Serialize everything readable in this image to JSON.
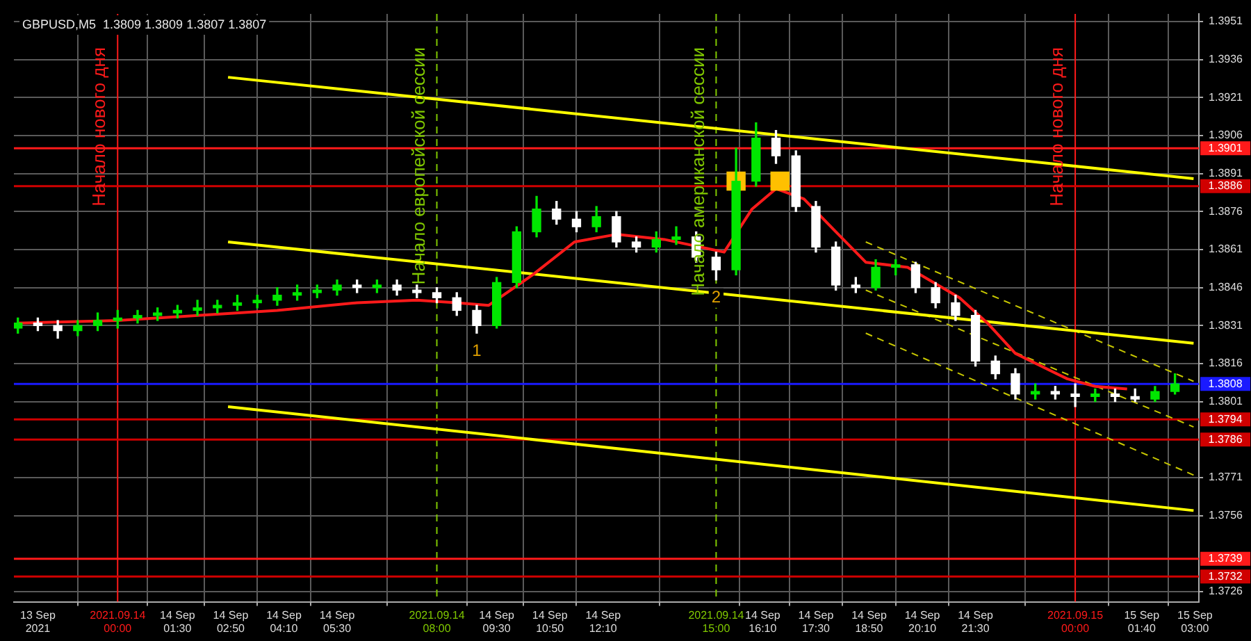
{
  "chart_data": {
    "type": "candlestick",
    "title": "GBPUSD,M5  1.3809 1.3809 1.3807 1.3807",
    "colors": [
      "#00e600",
      "#ffffff",
      "#ffffff",
      "#00e600",
      "#00e600",
      "#00e600",
      "#00e600",
      "#00e600",
      "#00e600",
      "#00e600",
      "#00e600",
      "#00e600",
      "#00e600",
      "#00e600",
      "#00e600",
      "#00e600",
      "#00e600",
      "#ffffff",
      "#00e600",
      "#ffffff",
      "#ffffff",
      "#ffffff",
      "#ffffff",
      "#ffffff",
      "#00e600",
      "#00e600",
      "#00e600",
      "#ffffff",
      "#ffffff",
      "#00e600",
      "#ffffff",
      "#ffffff",
      "#00e600",
      "#00e600",
      "#ffffff",
      "#ffffff",
      "#00e600",
      "#00e600",
      "#ffffff",
      "#ffffff",
      "#ffffff",
      "#ffffff",
      "#ffffff",
      "#00e600",
      "#00e600",
      "#ffffff",
      "#ffffff",
      "#ffffff",
      "#ffffff",
      "#ffffff",
      "#ffffff",
      "#00e600",
      "#ffffff",
      "#ffffff",
      "#00e600",
      "#ffffff",
      "#ffffff",
      "#00e600",
      "#00e600"
    ],
    "x": [
      "2021-09-13T21:30",
      "2021-09-13T22:00",
      "2021-09-13T22:30",
      "2021-09-13T23:00",
      "2021-09-13T23:30",
      "2021-09-14T00:00",
      "2021-09-14T00:30",
      "2021-09-14T01:00",
      "2021-09-14T01:30",
      "2021-09-14T02:00",
      "2021-09-14T02:30",
      "2021-09-14T03:00",
      "2021-09-14T03:30",
      "2021-09-14T04:00",
      "2021-09-14T04:30",
      "2021-09-14T05:00",
      "2021-09-14T05:30",
      "2021-09-14T06:00",
      "2021-09-14T06:30",
      "2021-09-14T07:00",
      "2021-09-14T07:30",
      "2021-09-14T08:00",
      "2021-09-14T08:30",
      "2021-09-14T09:00",
      "2021-09-14T09:30",
      "2021-09-14T10:00",
      "2021-09-14T10:30",
      "2021-09-14T11:00",
      "2021-09-14T11:30",
      "2021-09-14T12:00",
      "2021-09-14T12:30",
      "2021-09-14T13:00",
      "2021-09-14T13:30",
      "2021-09-14T14:00",
      "2021-09-14T14:30",
      "2021-09-14T15:00",
      "2021-09-14T15:30",
      "2021-09-14T16:00",
      "2021-09-14T16:30",
      "2021-09-14T17:00",
      "2021-09-14T17:30",
      "2021-09-14T18:00",
      "2021-09-14T18:30",
      "2021-09-14T19:00",
      "2021-09-14T19:30",
      "2021-09-14T20:00",
      "2021-09-14T20:30",
      "2021-09-14T21:00",
      "2021-09-14T21:30",
      "2021-09-14T22:00",
      "2021-09-14T22:30",
      "2021-09-14T23:00",
      "2021-09-14T23:30",
      "2021-09-15T00:00",
      "2021-09-15T00:30",
      "2021-09-15T01:00",
      "2021-09-15T01:30",
      "2021-09-15T02:00",
      "2021-09-15T02:30"
    ],
    "ohlc": [
      [
        1.383,
        1.3834,
        1.3828,
        1.3832
      ],
      [
        1.3832,
        1.3834,
        1.3829,
        1.3831
      ],
      [
        1.3831,
        1.3833,
        1.3826,
        1.3829
      ],
      [
        1.3829,
        1.3833,
        1.3827,
        1.3831
      ],
      [
        1.3831,
        1.3836,
        1.3829,
        1.3833
      ],
      [
        1.3833,
        1.3837,
        1.383,
        1.3834
      ],
      [
        1.3834,
        1.3837,
        1.3832,
        1.3835
      ],
      [
        1.3835,
        1.3838,
        1.3833,
        1.3836
      ],
      [
        1.3836,
        1.3839,
        1.3834,
        1.3837
      ],
      [
        1.3837,
        1.3841,
        1.3835,
        1.3838
      ],
      [
        1.3838,
        1.3841,
        1.3836,
        1.3839
      ],
      [
        1.3839,
        1.3843,
        1.3837,
        1.384
      ],
      [
        1.384,
        1.3843,
        1.3838,
        1.3841
      ],
      [
        1.3841,
        1.3846,
        1.3839,
        1.3843
      ],
      [
        1.3843,
        1.3847,
        1.3841,
        1.3844
      ],
      [
        1.3844,
        1.3847,
        1.3842,
        1.3845
      ],
      [
        1.3845,
        1.3849,
        1.3843,
        1.3847
      ],
      [
        1.3847,
        1.3849,
        1.3844,
        1.3846
      ],
      [
        1.3846,
        1.3849,
        1.3844,
        1.3847
      ],
      [
        1.3847,
        1.3849,
        1.3843,
        1.3845
      ],
      [
        1.3845,
        1.3847,
        1.3842,
        1.3844
      ],
      [
        1.3844,
        1.3846,
        1.384,
        1.3842
      ],
      [
        1.3842,
        1.3844,
        1.3835,
        1.3837
      ],
      [
        1.3837,
        1.3839,
        1.3828,
        1.3831
      ],
      [
        1.3831,
        1.385,
        1.383,
        1.3848
      ],
      [
        1.3848,
        1.387,
        1.3846,
        1.3868
      ],
      [
        1.3868,
        1.3882,
        1.3866,
        1.3877
      ],
      [
        1.3877,
        1.388,
        1.3871,
        1.3873
      ],
      [
        1.3873,
        1.3876,
        1.3868,
        1.387
      ],
      [
        1.387,
        1.3878,
        1.3868,
        1.3874
      ],
      [
        1.3874,
        1.3876,
        1.3862,
        1.3864
      ],
      [
        1.3864,
        1.3866,
        1.386,
        1.3862
      ],
      [
        1.3862,
        1.3868,
        1.386,
        1.3865
      ],
      [
        1.3865,
        1.387,
        1.3863,
        1.3866
      ],
      [
        1.3866,
        1.3868,
        1.3856,
        1.3858
      ],
      [
        1.3858,
        1.386,
        1.3849,
        1.3853
      ],
      [
        1.3853,
        1.3901,
        1.3851,
        1.3888
      ],
      [
        1.3888,
        1.3911,
        1.3886,
        1.3905
      ],
      [
        1.3905,
        1.3908,
        1.3895,
        1.3898
      ],
      [
        1.3898,
        1.39,
        1.3876,
        1.3878
      ],
      [
        1.3878,
        1.388,
        1.386,
        1.3862
      ],
      [
        1.3862,
        1.3864,
        1.3845,
        1.3847
      ],
      [
        1.3847,
        1.385,
        1.3844,
        1.3846
      ],
      [
        1.3846,
        1.3857,
        1.3845,
        1.3854
      ],
      [
        1.3854,
        1.3857,
        1.3851,
        1.3855
      ],
      [
        1.3855,
        1.3856,
        1.3844,
        1.3846
      ],
      [
        1.3846,
        1.3848,
        1.3838,
        1.384
      ],
      [
        1.384,
        1.3843,
        1.3833,
        1.3835
      ],
      [
        1.3835,
        1.3837,
        1.3815,
        1.3817
      ],
      [
        1.3817,
        1.3819,
        1.381,
        1.3812
      ],
      [
        1.3812,
        1.3814,
        1.3802,
        1.3804
      ],
      [
        1.3804,
        1.3808,
        1.3802,
        1.3805
      ],
      [
        1.3805,
        1.3807,
        1.3802,
        1.3804
      ],
      [
        1.3804,
        1.3808,
        1.3799,
        1.3803
      ],
      [
        1.3803,
        1.3806,
        1.3801,
        1.3804
      ],
      [
        1.3804,
        1.3806,
        1.3801,
        1.3803
      ],
      [
        1.3803,
        1.3806,
        1.3801,
        1.3802
      ],
      [
        1.3802,
        1.3807,
        1.3801,
        1.3805
      ],
      [
        1.3805,
        1.3812,
        1.3804,
        1.3808
      ]
    ],
    "series": [
      {
        "type": "line",
        "color": "#ff1a1a",
        "x": [
          "2021-09-13T21:30",
          "2021-09-14T00:00",
          "2021-09-14T02:00",
          "2021-09-14T04:00",
          "2021-09-14T06:00",
          "2021-09-14T07:30",
          "2021-09-14T08:30",
          "2021-09-14T09:18",
          "2021-09-14T10:24",
          "2021-09-14T11:27",
          "2021-09-14T12:30",
          "2021-09-14T13:42",
          "2021-09-14T15:12",
          "2021-09-14T15:54",
          "2021-09-14T16:30",
          "2021-09-14T17:12",
          "2021-09-14T18:00",
          "2021-09-14T18:45",
          "2021-09-14T19:48",
          "2021-09-14T21:06",
          "2021-09-14T21:48",
          "2021-09-14T22:30",
          "2021-09-14T23:48",
          "2021-09-15T00:30",
          "2021-09-15T01:18"
        ],
        "values": [
          1.3832,
          1.3833,
          1.3835,
          1.3837,
          1.384,
          1.3841,
          1.384,
          1.3839,
          1.3851,
          1.3864,
          1.3867,
          1.3865,
          1.386,
          1.3877,
          1.3885,
          1.3881,
          1.3868,
          1.3856,
          1.3854,
          1.3842,
          1.3832,
          1.382,
          1.381,
          1.3807,
          1.3806
        ]
      },
      {
        "type": "line",
        "color": "#ffff00",
        "x": [
          "2021-09-14T02:46",
          "2021-09-15T02:58"
        ],
        "values": [
          1.3929,
          1.3889
        ]
      },
      {
        "type": "line",
        "color": "#ffff00",
        "x": [
          "2021-09-14T02:46",
          "2021-09-15T02:58"
        ],
        "values": [
          1.3864,
          1.3824
        ]
      },
      {
        "type": "line",
        "color": "#ffff00",
        "x": [
          "2021-09-14T02:46",
          "2021-09-15T02:58"
        ],
        "values": [
          1.3799,
          1.3758
        ]
      },
      {
        "type": "line",
        "color": "#c8c800",
        "line_style": "dashed",
        "x": [
          "2021-09-14T18:45",
          "2021-09-15T02:58"
        ],
        "values": [
          1.3864,
          1.3809
        ]
      },
      {
        "type": "line",
        "color": "#c8c800",
        "line_style": "dashed",
        "x": [
          "2021-09-14T18:45",
          "2021-09-15T02:58"
        ],
        "values": [
          1.3845,
          1.3791
        ]
      },
      {
        "type": "line",
        "color": "#c8c800",
        "line_style": "dashed",
        "x": [
          "2021-09-14T18:45",
          "2021-09-15T02:58"
        ],
        "values": [
          1.3828,
          1.3772
        ]
      },
      {
        "type": "scatter",
        "marker": "square",
        "color": "#ffc000",
        "x": [
          "2021-09-14T15:30",
          "2021-09-14T16:36"
        ],
        "values": [
          1.3888,
          1.3888
        ]
      }
    ],
    "xlim": [
      "2021-09-13T21:24",
      "2021-09-15T03:06"
    ],
    "ylim": [
      1.3722,
      1.3954
    ],
    "xticks": [
      {
        "value": "2021-09-13T22:00",
        "label": "13 Sep 2021"
      },
      {
        "value": "2021-09-14T00:00",
        "label": "2021.09.14 00:00"
      },
      {
        "value": "2021-09-14T01:30",
        "label": "14 Sep 01:30"
      },
      {
        "value": "2021-09-14T02:50",
        "label": "14 Sep 02:50"
      },
      {
        "value": "2021-09-14T04:10",
        "label": "14 Sep 04:10"
      },
      {
        "value": "2021-09-14T05:30",
        "label": "14 Sep 05:30"
      },
      {
        "value": "2021-09-14T08:00",
        "label": "2021.09.14 08:00"
      },
      {
        "value": "2021-09-14T09:30",
        "label": "14 Sep 09:30"
      },
      {
        "value": "2021-09-14T10:50",
        "label": "14 Sep 10:50"
      },
      {
        "value": "2021-09-14T12:10",
        "label": "14 Sep 12:10"
      },
      {
        "value": "2021-09-14T15:00",
        "label": "2021.09.14 15:00"
      },
      {
        "value": "2021-09-14T16:10",
        "label": "14 Sep 16:10"
      },
      {
        "value": "2021-09-14T17:30",
        "label": "14 Sep 17:30"
      },
      {
        "value": "2021-09-14T18:50",
        "label": "14 Sep 18:50"
      },
      {
        "value": "2021-09-14T20:10",
        "label": "14 Sep 20:10"
      },
      {
        "value": "2021-09-14T21:30",
        "label": "14 Sep 21:30"
      },
      {
        "value": "2021-09-15T00:00",
        "label": "2021.09.15 00:00"
      },
      {
        "value": "2021-09-15T01:40",
        "label": "15 Sep 01:40"
      },
      {
        "value": "2021-09-15T03:00",
        "label": "15 Sep 03:00"
      }
    ],
    "yticks": [
      1.3726,
      1.3756,
      1.3771,
      1.3801,
      1.3816,
      1.3831,
      1.3846,
      1.3861,
      1.3876,
      1.3891,
      1.3906,
      1.3921,
      1.3936,
      1.3951
    ],
    "grid": true,
    "ref_lines": [
      {
        "axis": "x",
        "value": "2021-09-14T00:00",
        "label": "Начало нового дня",
        "color": "#ff1a1a"
      },
      {
        "axis": "x",
        "value": "2021-09-14T08:00",
        "label": "Начало европейской сессии",
        "color": "#80c800",
        "line_style": "dashed"
      },
      {
        "axis": "x",
        "value": "2021-09-14T15:00",
        "label": "Начало американской сессии",
        "color": "#80c800",
        "line_style": "dashed"
      },
      {
        "axis": "x",
        "value": "2021-09-15T00:00",
        "label": "Начало нового дня",
        "color": "#ff1a1a"
      },
      {
        "axis": "y",
        "value": 1.3901,
        "label": "1.3901",
        "color": "#ff1a1a"
      },
      {
        "axis": "y",
        "value": 1.3886,
        "label": "1.3886",
        "color": "#d00000"
      },
      {
        "axis": "y",
        "value": 1.3808,
        "label": "1.3808",
        "color": "#1a1aff"
      },
      {
        "axis": "y",
        "value": 1.3794,
        "label": "1.3794",
        "color": "#d00000"
      },
      {
        "axis": "y",
        "value": 1.3786,
        "label": "1.3786",
        "color": "#d00000"
      },
      {
        "axis": "y",
        "value": 1.3739,
        "label": "1.3739",
        "color": "#ff1a1a"
      },
      {
        "axis": "y",
        "value": 1.3732,
        "label": "1.3732",
        "color": "#d00000"
      }
    ],
    "annotations": [
      {
        "text": "1",
        "x": "2021-09-14T09:00",
        "y": 1.3828
      },
      {
        "text": "2",
        "x": "2021-09-14T15:00",
        "y": 1.3849
      }
    ]
  }
}
